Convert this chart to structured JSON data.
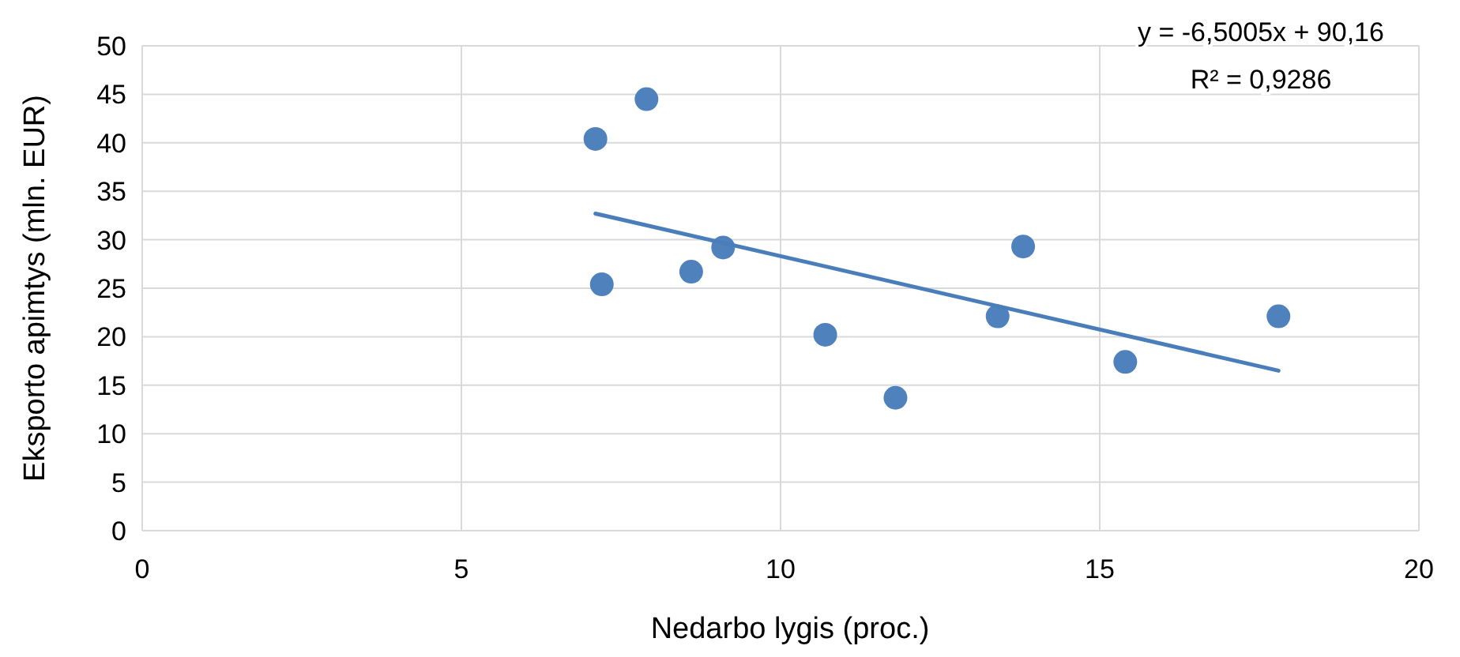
{
  "chart_data": {
    "type": "scatter",
    "xlabel": "Nedarbo lygis (proc.)",
    "ylabel": "Eksporto apimtys (mln. EUR)",
    "xlim": [
      0,
      20
    ],
    "xticks": [
      0,
      5,
      10,
      15,
      20
    ],
    "ylim": [
      0,
      50
    ],
    "yticks": [
      0,
      5,
      10,
      15,
      20,
      25,
      30,
      35,
      40,
      45,
      50
    ],
    "grid": true,
    "series": [
      {
        "marker": "circle",
        "color": "#4f81bd",
        "x": [
          7.1,
          7.9,
          7.2,
          8.6,
          9.1,
          10.7,
          11.8,
          13.4,
          13.8,
          15.4,
          17.8
        ],
        "values": [
          40.4,
          44.5,
          25.4,
          26.7,
          29.2,
          20.2,
          13.7,
          22.1,
          29.3,
          17.4,
          22.1
        ]
      },
      {
        "type": "line",
        "marker": "none",
        "color": "#4a7ebb",
        "x": [
          7.1,
          17.8
        ],
        "values": [
          32.7,
          16.5
        ]
      }
    ],
    "annotations": [
      "y = -6,5005x + 90,16",
      "R² = 0,9286"
    ]
  }
}
